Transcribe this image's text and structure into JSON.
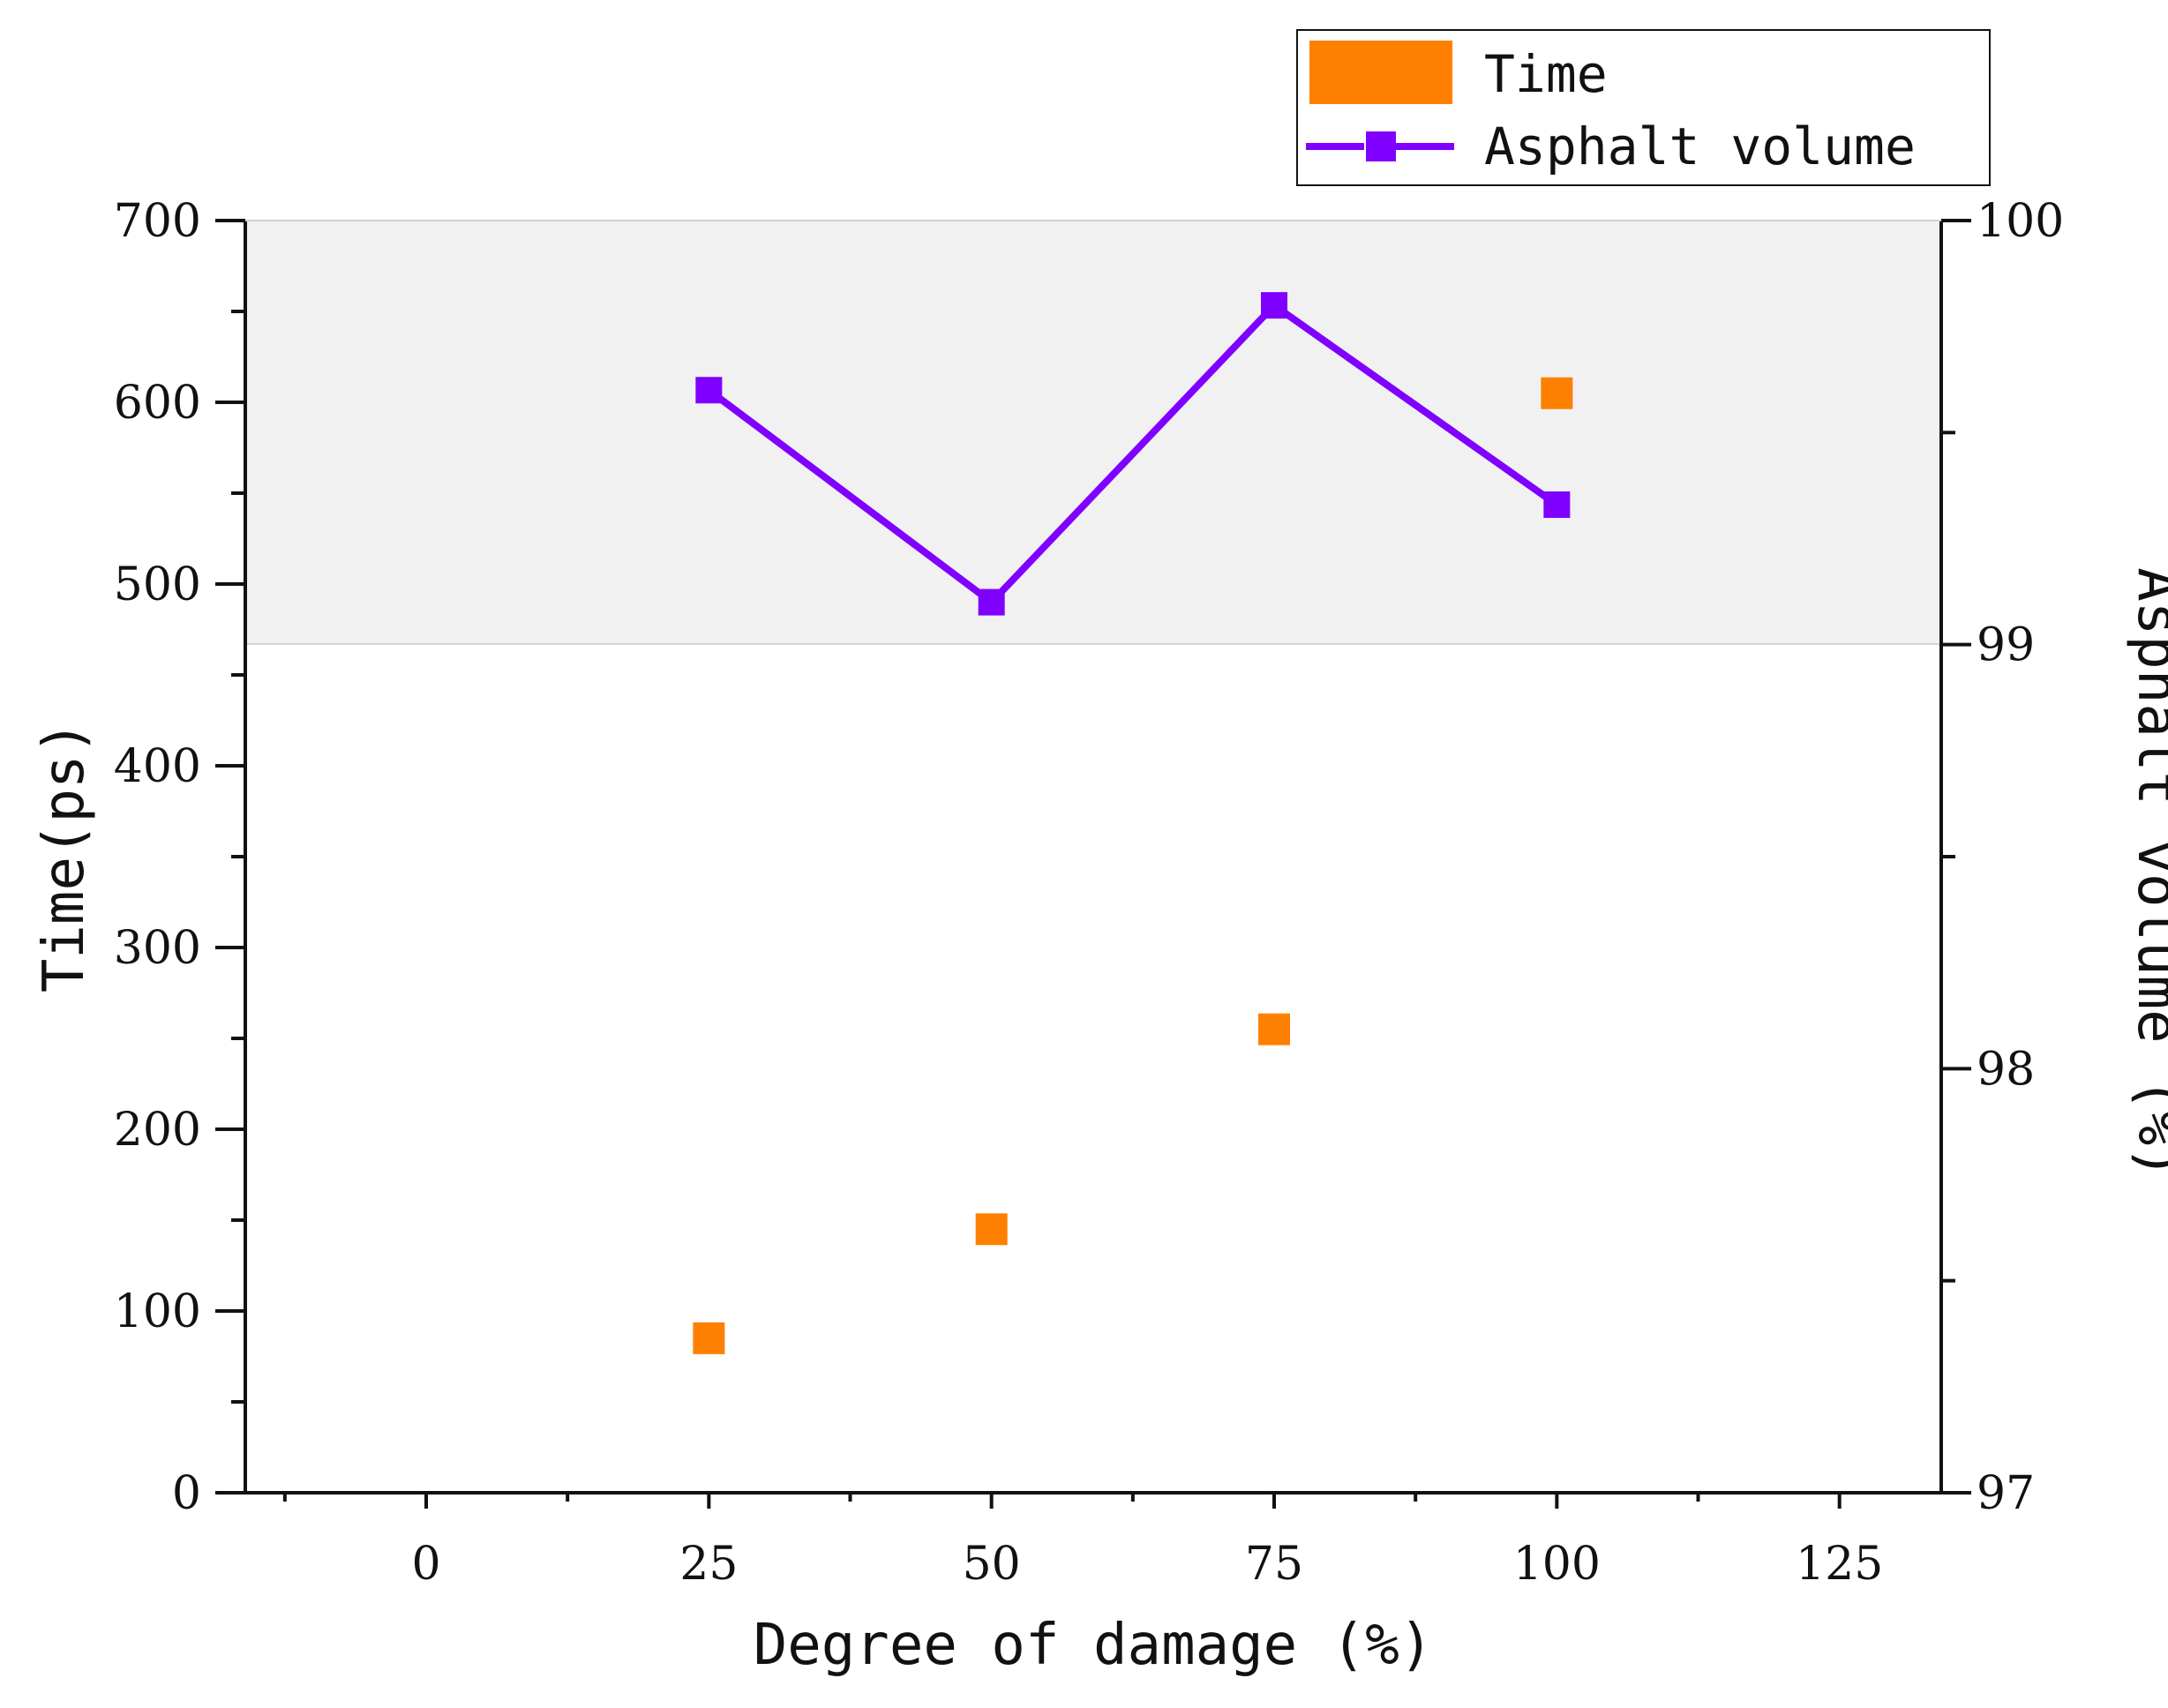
{
  "chart_data": {
    "type": "bar",
    "title": "",
    "xlabel": "Degree of damage (%)",
    "ylabel_left": "Time(ps)",
    "ylabel_right": "Asphalt volume (%)",
    "x_ticks": [
      "0",
      "25",
      "50",
      "75",
      "100",
      "125"
    ],
    "x_tick_values": [
      0,
      25,
      50,
      75,
      100,
      125
    ],
    "x_range": [
      -16,
      134
    ],
    "y_left_ticks": [
      "0",
      "100",
      "200",
      "300",
      "400",
      "500",
      "600",
      "700"
    ],
    "y_left_tick_values": [
      0,
      100,
      200,
      300,
      400,
      500,
      600,
      700
    ],
    "y_left_range": [
      0,
      700
    ],
    "y_right_ticks": [
      "97",
      "98",
      "99",
      "100"
    ],
    "y_right_tick_values": [
      97,
      98,
      99,
      100
    ],
    "y_right_range": [
      97,
      100
    ],
    "highlight_band_left_axis": [
      467,
      700
    ],
    "series": [
      {
        "name": "Time",
        "axis": "left",
        "style": "square-marker",
        "color": "#FF8000",
        "x": [
          25,
          50,
          75,
          100
        ],
        "values": [
          85,
          145,
          255,
          605
        ]
      },
      {
        "name": "Asphalt volume",
        "axis": "right",
        "style": "line-square",
        "color": "#8000FF",
        "x": [
          25,
          50,
          75,
          100
        ],
        "values": [
          99.6,
          99.1,
          99.8,
          99.33
        ]
      }
    ],
    "legend": {
      "position": "top-right",
      "entries": [
        "Time",
        "Asphalt volume"
      ]
    }
  }
}
